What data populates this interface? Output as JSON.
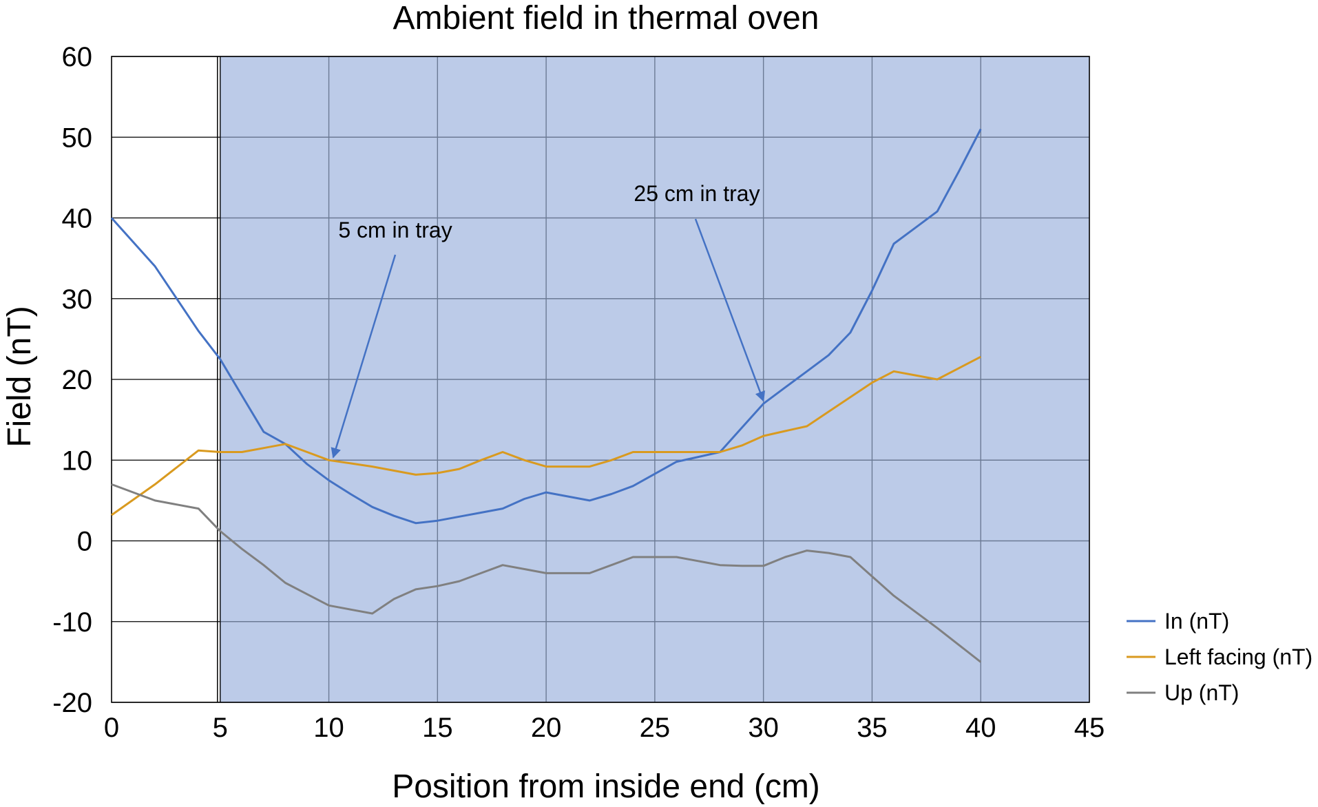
{
  "chart_data": {
    "type": "line",
    "title": "Ambient field in thermal oven",
    "xlabel": "Position from inside end (cm)",
    "ylabel": "Field (nT)",
    "xlim": [
      0,
      45
    ],
    "ylim": [
      -20,
      60
    ],
    "x_ticks": [
      0,
      5,
      10,
      15,
      20,
      25,
      30,
      35,
      40,
      45
    ],
    "y_ticks": [
      -20,
      -10,
      0,
      10,
      20,
      30,
      40,
      50,
      60
    ],
    "grid": true,
    "legend_position": "right",
    "shaded_region": {
      "x": [
        5,
        45
      ],
      "color": "#bccbe8"
    },
    "colors": {
      "In (nT)": "#4472c4",
      "Left facing (nT)": "#d99a1f",
      "Up (nT)": "#808080",
      "grid": "#6b7a94",
      "axes": "#000000",
      "annotation_arrow": "#4472c4"
    },
    "series": [
      {
        "name": "In (nT)",
        "x": [
          0,
          2,
          4,
          5,
          6,
          7,
          8,
          9,
          10,
          11,
          12,
          13,
          14,
          15,
          16,
          17,
          18,
          19,
          20,
          21,
          22,
          23,
          24,
          25,
          26,
          27,
          28,
          29,
          30,
          31,
          32,
          33,
          34,
          35,
          36,
          37,
          38,
          39,
          40
        ],
        "y": [
          40,
          34,
          26,
          22.5,
          18,
          13.5,
          12,
          9.5,
          7.5,
          5.8,
          4.2,
          3.1,
          2.2,
          2.5,
          3,
          3.5,
          4,
          5.2,
          6,
          5.5,
          5,
          5.8,
          6.8,
          8.3,
          9.8,
          10.4,
          11,
          14,
          17,
          19,
          21,
          23,
          25.8,
          31,
          36.8,
          38.8,
          40.8,
          45.8,
          51
        ]
      },
      {
        "name": "Left facing (nT)",
        "x": [
          0,
          2,
          4,
          5,
          6,
          7,
          8,
          9,
          10,
          11,
          12,
          13,
          14,
          15,
          16,
          17,
          18,
          19,
          20,
          21,
          22,
          23,
          24,
          25,
          26,
          27,
          28,
          29,
          30,
          31,
          32,
          33,
          34,
          35,
          36,
          37,
          38,
          39,
          40
        ],
        "y": [
          3.2,
          7,
          11.2,
          11,
          11,
          11.5,
          12,
          11,
          10,
          9.6,
          9.2,
          8.7,
          8.2,
          8.4,
          8.9,
          10,
          11,
          10,
          9.2,
          9.2,
          9.2,
          10,
          11,
          11,
          11,
          11,
          11,
          11.8,
          13,
          13.6,
          14.2,
          16,
          17.8,
          19.6,
          21,
          20.5,
          20,
          21.4,
          22.8
        ]
      },
      {
        "name": "Up (nT)",
        "x": [
          0,
          2,
          4,
          5,
          6,
          7,
          8,
          9,
          10,
          11,
          12,
          13,
          14,
          15,
          16,
          17,
          18,
          19,
          20,
          21,
          22,
          23,
          24,
          25,
          26,
          27,
          28,
          29,
          30,
          31,
          32,
          33,
          34,
          35,
          36,
          37,
          38,
          39,
          40
        ],
        "y": [
          7,
          5,
          4,
          1.2,
          -1,
          -3,
          -5.2,
          -6.6,
          -8,
          -8.5,
          -9,
          -7.2,
          -6,
          -5.6,
          -5,
          -4,
          -3,
          -3.5,
          -4,
          -4,
          -4,
          -3,
          -2,
          -2,
          -2,
          -2.5,
          -3,
          -3.1,
          -3.1,
          -2,
          -1.2,
          -1.5,
          -2,
          -4.4,
          -6.8,
          -8.8,
          -10.8,
          -12.9,
          -15
        ]
      }
    ],
    "annotations": [
      {
        "text": "5 cm in tray",
        "x": 10.2,
        "y": 10
      },
      {
        "text": "25 cm in tray",
        "x": 30,
        "y": 17
      }
    ]
  }
}
